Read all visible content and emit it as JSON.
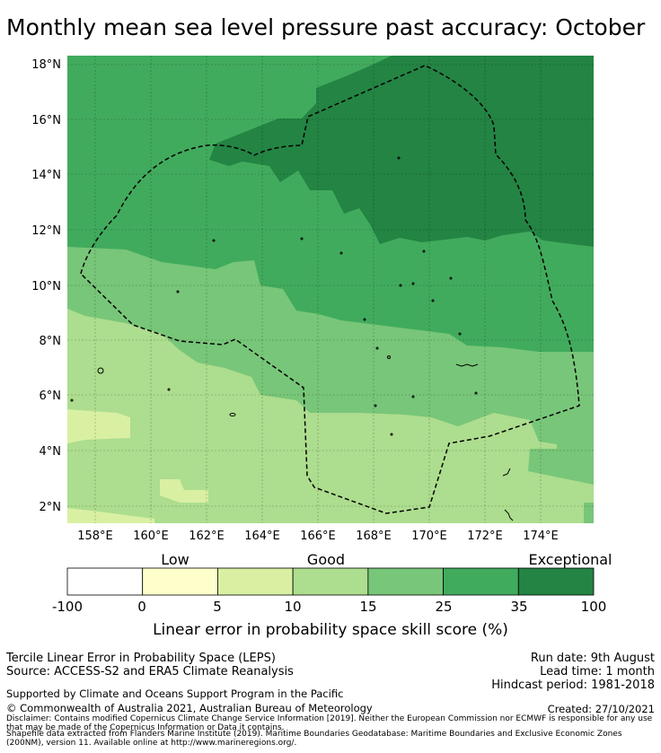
{
  "title": "Monthly mean sea level pressure past accuracy: October",
  "map": {
    "lat_labels": [
      "18°N",
      "16°N",
      "14°N",
      "12°N",
      "10°N",
      "8°N",
      "6°N",
      "4°N",
      "2°N"
    ],
    "lon_labels": [
      "158°E",
      "160°E",
      "162°E",
      "164°E",
      "166°E",
      "168°E",
      "170°E",
      "172°E",
      "174°E"
    ],
    "lon_range": [
      157,
      176
    ],
    "lat_range": [
      1.4,
      18.4
    ],
    "colors": {
      "exceptional": "#238443",
      "c25_35": "#41ab5d",
      "c15_25": "#78c679",
      "c10_15": "#addd8e",
      "c5_10": "#d9f0a3",
      "c0_5": "#ffffcc",
      "below0": "#ffffff"
    }
  },
  "colorbar": {
    "category_labels": [
      "Low",
      "Good",
      "Exceptional"
    ],
    "ticks": [
      "-100",
      "0",
      "5",
      "10",
      "15",
      "25",
      "35",
      "100"
    ],
    "colors": [
      "#ffffff",
      "#ffffcc",
      "#d9f0a3",
      "#addd8e",
      "#78c679",
      "#41ab5d",
      "#238443"
    ],
    "title": "Linear error in probability space skill score (%)"
  },
  "info": {
    "left1": "Tercile Linear Error in Probability Space (LEPS)",
    "left2": "Source: ACCESS-S2 and ERA5 Climate Reanalysis",
    "right1": "Run date: 9th August",
    "right2": "Lead time: 1 month",
    "right3": "Hindcast period: 1981-2018",
    "support": "Supported by Climate and Oceans Support Program in the Pacific",
    "copyright": "© Commonwealth of Australia 2021, Australian Bureau of Meteorology",
    "created": "Created: 27/10/2021",
    "disclaimer": "Disclaimer: Contains modified Copernicus Climate Change Service Information [2019]. Neither the European Commission nor ECMWF is responsible for any use that may be made of the Copernicus Information or Data it contains.",
    "shapefile": "Shapefile data extracted from Flanders Marine Institute (2019). Maritime Boundaries Geodatabase: Maritime Boundaries and Exclusive Economic Zones (200NM), version 11. Available online at http://www.marineregions.org/."
  }
}
